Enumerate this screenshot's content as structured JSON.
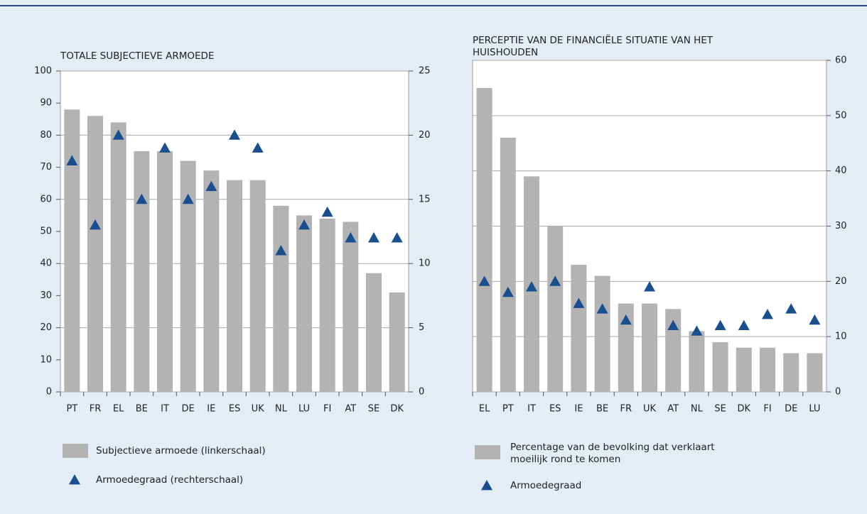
{
  "chart_data": [
    {
      "type": "combo",
      "title": "TOTALE SUBJECTIEVE ARMOEDE",
      "categories": [
        "PT",
        "FR",
        "EL",
        "BE",
        "IT",
        "DE",
        "IE",
        "ES",
        "UK",
        "NL",
        "LU",
        "FI",
        "AT",
        "SE",
        "DK"
      ],
      "series": [
        {
          "name": "Subjectieve armoede (linkerschaal)",
          "mark": "bar",
          "color": "#b3b3b3",
          "values": [
            88,
            86,
            84,
            75,
            75,
            72,
            69,
            66,
            66,
            58,
            55,
            54,
            53,
            37,
            31
          ]
        },
        {
          "name": "Armoedegraad (rechterschaal)",
          "mark": "triangle",
          "color": "#1a4f8f",
          "axis": "y2",
          "values": [
            18,
            13,
            20,
            15,
            19,
            15,
            16,
            20,
            19,
            11,
            13,
            14,
            12,
            12,
            12
          ]
        }
      ],
      "ylim": [
        0,
        100
      ],
      "yticks": [
        0,
        10,
        20,
        30,
        40,
        50,
        60,
        70,
        80,
        90,
        100
      ],
      "y2lim": [
        0,
        25
      ],
      "y2ticks": [
        0,
        5,
        10,
        15,
        20,
        25
      ],
      "grid": "y2"
    },
    {
      "type": "combo",
      "title": "PERCEPTIE VAN DE FINANCIËLE SITUATIE VAN HET HUISHOUDEN",
      "categories": [
        "EL",
        "PT",
        "IT",
        "ES",
        "IE",
        "BE",
        "FR",
        "UK",
        "AT",
        "NL",
        "SE",
        "DK",
        "FI",
        "DE",
        "LU"
      ],
      "series": [
        {
          "name": "Percentage van de bevolking dat verklaart moeilijk rond te komen",
          "mark": "bar",
          "color": "#b3b3b3",
          "values": [
            55,
            46,
            39,
            30,
            23,
            21,
            16,
            16,
            15,
            11,
            9,
            8,
            8,
            7,
            7
          ]
        },
        {
          "name": "Armoedegraad",
          "mark": "triangle",
          "color": "#1a4f8f",
          "values": [
            20,
            18,
            19,
            20,
            16,
            15,
            13,
            19,
            12,
            11,
            12,
            12,
            14,
            15,
            13
          ]
        }
      ],
      "ylim": [
        0,
        60
      ],
      "yticks": [
        0,
        10,
        20,
        30,
        40,
        50,
        60
      ],
      "ytick_side": "right",
      "grid": "y"
    }
  ]
}
